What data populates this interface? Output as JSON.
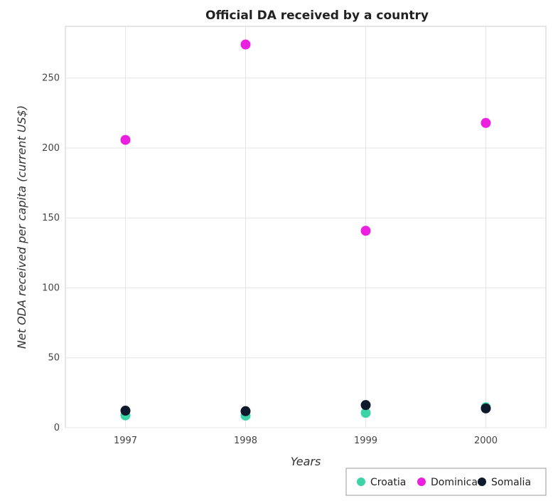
{
  "chart_data": {
    "type": "scatter",
    "title": "Official DA received by a country",
    "xlabel": "Years",
    "ylabel": "Net ODA received per capita (current US$)",
    "categories": [
      "1997",
      "1998",
      "1999",
      "2000"
    ],
    "y_ticks": [
      0,
      50,
      100,
      150,
      200,
      250
    ],
    "ylim": [
      0,
      287
    ],
    "grid": true,
    "legend_position": "bottom-right",
    "series": [
      {
        "name": "Croatia",
        "color": "#3cd3a6",
        "values": [
          8.8,
          8.6,
          10.6,
          14.6
        ]
      },
      {
        "name": "Dominica",
        "color": "#ea1fe0",
        "values": [
          205.8,
          274.0,
          140.8,
          217.9
        ]
      },
      {
        "name": "Somalia",
        "color": "#0e1a2b",
        "values": [
          12.2,
          11.8,
          16.2,
          13.8
        ]
      }
    ]
  }
}
